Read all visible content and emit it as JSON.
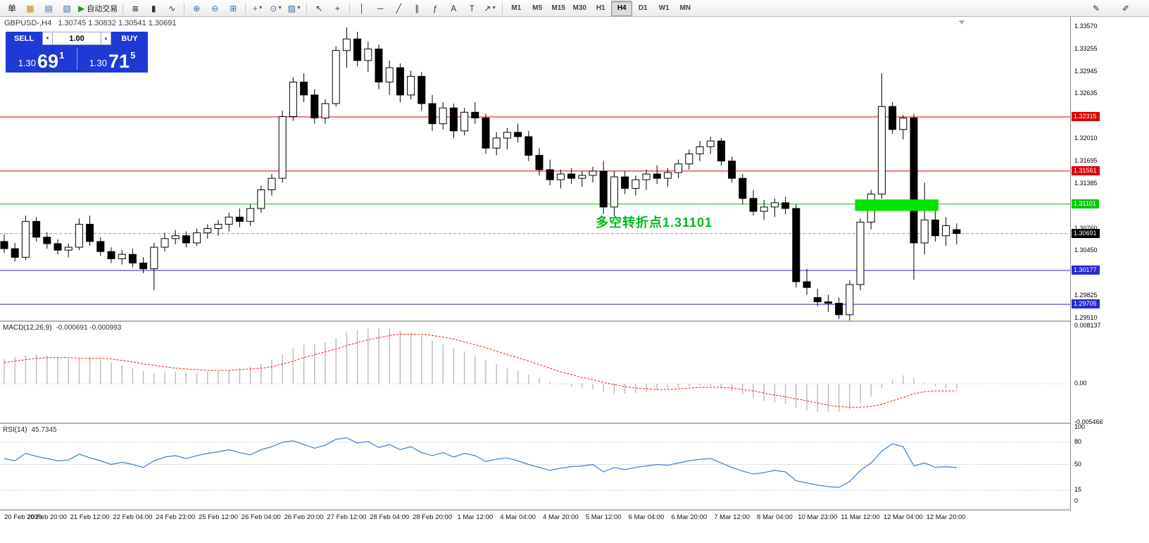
{
  "header": {
    "symbol_period": "GBPUSD-,H4",
    "ohlc": "1.30745 1.30832 1.30541 1.30691"
  },
  "one_click": {
    "sell_label": "SELL",
    "buy_label": "BUY",
    "volume": "1.00",
    "dec_glyph": "▼",
    "inc_glyph": "▲",
    "bid": {
      "prefix": "1.30",
      "big": "69",
      "sup": "1"
    },
    "ask": {
      "prefix": "1.30",
      "big": "71",
      "sup": "5"
    },
    "panel_color": "#1f39d4"
  },
  "toolbar": {
    "groups": [
      [
        {
          "name": "new-order-button",
          "glyph": "单",
          "color": "#222222"
        },
        {
          "name": "profiles-icon",
          "glyph": "▦",
          "color": "#c8860a"
        },
        {
          "name": "market-watch-icon",
          "glyph": "▤",
          "color": "#3a6ea5"
        },
        {
          "name": "navigator-icon",
          "glyph": "▧",
          "color": "#3a6ea5"
        },
        {
          "name": "auto-trading-button",
          "glyph": "▶",
          "color": "#18a018",
          "label": "自动交易"
        }
      ],
      [
        {
          "name": "bar-chart-icon",
          "glyph": "≣",
          "color": "#333333"
        },
        {
          "name": "candlestick-chart-icon",
          "glyph": "▮",
          "color": "#333333"
        },
        {
          "name": "line-chart-icon",
          "glyph": "∿",
          "color": "#333333"
        }
      ],
      [
        {
          "name": "zoom-in-icon",
          "glyph": "⊕",
          "color": "#3a6ea5"
        },
        {
          "name": "zoom-out-icon",
          "glyph": "⊖",
          "color": "#3a6ea5"
        },
        {
          "name": "tile-windows-icon",
          "glyph": "⊞",
          "color": "#3a6ea5"
        }
      ],
      [
        {
          "name": "indicators-button",
          "glyph": "+",
          "color": "#0a9a0a",
          "dropdown": true
        },
        {
          "name": "periods-button",
          "glyph": "⊙",
          "color": "#3a6ea5",
          "dropdown": true
        },
        {
          "name": "templates-button",
          "glyph": "▨",
          "color": "#3a6ea5",
          "dropdown": true
        }
      ],
      [
        {
          "name": "cursor-icon",
          "glyph": "↖",
          "color": "#333333"
        },
        {
          "name": "crosshair-icon",
          "glyph": "+",
          "color": "#333333"
        }
      ],
      [
        {
          "name": "vertical-line-icon",
          "glyph": "│",
          "color": "#333333"
        },
        {
          "name": "horizontal-line-icon",
          "glyph": "─",
          "color": "#333333"
        },
        {
          "name": "trendline-icon",
          "glyph": "╱",
          "color": "#333333"
        },
        {
          "name": "channel-icon",
          "glyph": "∥",
          "color": "#333333"
        },
        {
          "name": "fibonacci-icon",
          "glyph": "ƒ",
          "color": "#333333"
        },
        {
          "name": "text-icon",
          "glyph": "A",
          "color": "#333333"
        },
        {
          "name": "label-icon",
          "glyph": "T",
          "color": "#333333"
        },
        {
          "name": "arrows-icon",
          "glyph": "↗",
          "color": "#333333",
          "dropdown": true
        }
      ]
    ],
    "timeframes": [
      "M1",
      "M5",
      "M15",
      "M30",
      "H1",
      "H4",
      "D1",
      "W1",
      "MN"
    ],
    "active_timeframe": "H4",
    "right_icons": [
      {
        "name": "edit-icon",
        "glyph": "✎"
      },
      {
        "name": "note-icon",
        "glyph": "✐"
      }
    ]
  },
  "chart_data": {
    "type": "candlestick",
    "symbol": "GBPUSD-",
    "period": "H4",
    "title": "GBPUSD-,H4 1.30745 1.30832 1.30541 1.30691",
    "ylim": [
      1.2951,
      1.3357
    ],
    "label_every": 4,
    "time_labels": [
      "20 Feb 2019",
      "20 Feb 20:00",
      "21 Feb 12:00",
      "22 Feb 04:00",
      "24 Feb 23:00",
      "25 Feb 12:00",
      "26 Feb 04:00",
      "26 Feb 20:00",
      "27 Feb 12:00",
      "28 Feb 04:00",
      "28 Feb 20:00",
      "1 Mar 12:00",
      "4 Mar 04:00",
      "4 Mar 20:00",
      "5 Mar 12:00",
      "6 Mar 04:00",
      "6 Mar 20:00",
      "7 Mar 12:00",
      "8 Mar 04:00",
      "10 Mar 23:00",
      "11 Mar 12:00",
      "12 Mar 04:00",
      "12 Mar 20:00"
    ],
    "price_ticks": [
      {
        "label": "1.33570",
        "value": 1.3357
      },
      {
        "label": "1.33255",
        "value": 1.33255
      },
      {
        "label": "1.32945",
        "value": 1.32945
      },
      {
        "label": "1.32635",
        "value": 1.32635
      },
      {
        "label": "1.32010",
        "value": 1.3201
      },
      {
        "label": "1.31695",
        "value": 1.31695
      },
      {
        "label": "1.31385",
        "value": 1.31385
      },
      {
        "label": "1.30760",
        "value": 1.3076
      },
      {
        "label": "1.30450",
        "value": 1.3045
      },
      {
        "label": "1.29825",
        "value": 1.29825
      },
      {
        "label": "1.29510",
        "value": 1.2951
      }
    ],
    "levels": [
      {
        "label": "1.32315",
        "price": 1.32315,
        "color": "#dd0000"
      },
      {
        "label": "1.31561",
        "price": 1.31561,
        "color": "#dd0000"
      },
      {
        "label": "1.31101",
        "price": 1.31101,
        "color": "#00cc00"
      },
      {
        "label": "1.30177",
        "price": 1.30177,
        "color": "#2929d6"
      },
      {
        "label": "1.29705",
        "price": 1.29705,
        "color": "#2929d6"
      }
    ],
    "current_price": {
      "label": "1.30691",
      "price": 1.30691,
      "color": "#000000"
    },
    "green_box": {
      "from_index": 79.5,
      "to_index": 87.3,
      "price_top": 1.31165,
      "price_bottom": 1.31005,
      "color": "#00e400"
    },
    "annotation": {
      "text": "多空转折点1.31101",
      "color": "#00b81e"
    },
    "candles": [
      [
        1.3058,
        1.3068,
        1.3042,
        1.3048
      ],
      [
        1.3048,
        1.3056,
        1.303,
        1.3036
      ],
      [
        1.3036,
        1.3094,
        1.3032,
        1.3086
      ],
      [
        1.3086,
        1.3092,
        1.3058,
        1.3064
      ],
      [
        1.3064,
        1.3071,
        1.3048,
        1.3055
      ],
      [
        1.3055,
        1.3061,
        1.304,
        1.3046
      ],
      [
        1.3046,
        1.3055,
        1.3036,
        1.305
      ],
      [
        1.305,
        1.309,
        1.3046,
        1.3082
      ],
      [
        1.3082,
        1.3094,
        1.3052,
        1.3058
      ],
      [
        1.3058,
        1.3064,
        1.3038,
        1.3044
      ],
      [
        1.3044,
        1.305,
        1.3028,
        1.3034
      ],
      [
        1.3034,
        1.3046,
        1.3026,
        1.304
      ],
      [
        1.304,
        1.3048,
        1.3022,
        1.3028
      ],
      [
        1.3028,
        1.3036,
        1.3014,
        1.302
      ],
      [
        1.302,
        1.3056,
        1.299,
        1.305
      ],
      [
        1.305,
        1.307,
        1.3044,
        1.3062
      ],
      [
        1.3062,
        1.3074,
        1.3054,
        1.3066
      ],
      [
        1.3066,
        1.3072,
        1.305,
        1.3056
      ],
      [
        1.3056,
        1.3076,
        1.3052,
        1.307
      ],
      [
        1.307,
        1.3082,
        1.3062,
        1.3076
      ],
      [
        1.3076,
        1.3088,
        1.3066,
        1.3082
      ],
      [
        1.3082,
        1.3098,
        1.3072,
        1.3092
      ],
      [
        1.3092,
        1.3104,
        1.3078,
        1.3086
      ],
      [
        1.3086,
        1.311,
        1.308,
        1.3104
      ],
      [
        1.3104,
        1.3136,
        1.3098,
        1.313
      ],
      [
        1.313,
        1.3152,
        1.3122,
        1.3146
      ],
      [
        1.3146,
        1.324,
        1.314,
        1.3232
      ],
      [
        1.3232,
        1.3286,
        1.3226,
        1.328
      ],
      [
        1.328,
        1.3292,
        1.3252,
        1.3262
      ],
      [
        1.3262,
        1.327,
        1.3222,
        1.323
      ],
      [
        1.323,
        1.3256,
        1.3222,
        1.325
      ],
      [
        1.325,
        1.333,
        1.3246,
        1.3324
      ],
      [
        1.3324,
        1.3356,
        1.33,
        1.334
      ],
      [
        1.334,
        1.335,
        1.3302,
        1.331
      ],
      [
        1.331,
        1.3336,
        1.3294,
        1.3326
      ],
      [
        1.3326,
        1.3332,
        1.327,
        1.328
      ],
      [
        1.328,
        1.331,
        1.3262,
        1.33
      ],
      [
        1.33,
        1.3306,
        1.3252,
        1.3262
      ],
      [
        1.3262,
        1.3296,
        1.3256,
        1.3288
      ],
      [
        1.3288,
        1.3294,
        1.324,
        1.325
      ],
      [
        1.325,
        1.3262,
        1.3212,
        1.3222
      ],
      [
        1.3222,
        1.3252,
        1.3214,
        1.3244
      ],
      [
        1.3244,
        1.325,
        1.3202,
        1.3212
      ],
      [
        1.3212,
        1.3244,
        1.3206,
        1.3238
      ],
      [
        1.3238,
        1.3252,
        1.3222,
        1.323
      ],
      [
        1.323,
        1.3236,
        1.318,
        1.3188
      ],
      [
        1.3188,
        1.321,
        1.3178,
        1.3202
      ],
      [
        1.3202,
        1.3216,
        1.3186,
        1.321
      ],
      [
        1.321,
        1.3222,
        1.3196,
        1.3204
      ],
      [
        1.3204,
        1.3212,
        1.317,
        1.3178
      ],
      [
        1.3178,
        1.3188,
        1.315,
        1.3158
      ],
      [
        1.3158,
        1.3172,
        1.3136,
        1.3144
      ],
      [
        1.3144,
        1.3158,
        1.3132,
        1.3152
      ],
      [
        1.3152,
        1.316,
        1.3138,
        1.3146
      ],
      [
        1.3146,
        1.3156,
        1.3134,
        1.315
      ],
      [
        1.315,
        1.3162,
        1.314,
        1.3156
      ],
      [
        1.3156,
        1.317,
        1.3096,
        1.3106
      ],
      [
        1.3106,
        1.3156,
        1.3094,
        1.3148
      ],
      [
        1.3148,
        1.3156,
        1.3124,
        1.3132
      ],
      [
        1.3132,
        1.315,
        1.3122,
        1.3144
      ],
      [
        1.3144,
        1.3158,
        1.313,
        1.3152
      ],
      [
        1.3152,
        1.3164,
        1.3138,
        1.3146
      ],
      [
        1.3146,
        1.316,
        1.3134,
        1.3154
      ],
      [
        1.3154,
        1.3172,
        1.3146,
        1.3166
      ],
      [
        1.3166,
        1.3186,
        1.3158,
        1.318
      ],
      [
        1.318,
        1.3198,
        1.317,
        1.319
      ],
      [
        1.319,
        1.3204,
        1.318,
        1.3198
      ],
      [
        1.3198,
        1.3202,
        1.3164,
        1.317
      ],
      [
        1.317,
        1.3176,
        1.314,
        1.3146
      ],
      [
        1.3146,
        1.3152,
        1.311,
        1.3118
      ],
      [
        1.3118,
        1.313,
        1.3094,
        1.31
      ],
      [
        1.31,
        1.3116,
        1.3088,
        1.3106
      ],
      [
        1.3106,
        1.3118,
        1.3092,
        1.3112
      ],
      [
        1.3112,
        1.312,
        1.3096,
        1.3104
      ],
      [
        1.3104,
        1.311,
        1.2994,
        1.3002
      ],
      [
        1.3002,
        1.302,
        1.2984,
        1.2994
      ],
      [
        1.298,
        1.2992,
        1.2968,
        1.2974
      ],
      [
        1.2974,
        1.2984,
        1.296,
        1.2972
      ],
      [
        1.2972,
        1.298,
        1.295,
        1.2956
      ],
      [
        1.2956,
        1.3004,
        1.2948,
        1.2998
      ],
      [
        1.2998,
        1.309,
        1.299,
        1.3085
      ],
      [
        1.3085,
        1.313,
        1.3075,
        1.3124
      ],
      [
        1.3124,
        1.3292,
        1.3118,
        1.3246
      ],
      [
        1.3246,
        1.3252,
        1.3208,
        1.3214
      ],
      [
        1.3214,
        1.3234,
        1.32,
        1.323
      ],
      [
        1.323,
        1.3236,
        1.3005,
        1.3056
      ],
      [
        1.3056,
        1.314,
        1.304,
        1.3088
      ],
      [
        1.3088,
        1.3102,
        1.3058,
        1.3066
      ],
      [
        1.3066,
        1.3092,
        1.3052,
        1.308
      ],
      [
        1.30745,
        1.30832,
        1.30541,
        1.30691
      ]
    ],
    "macd": {
      "label": "MACD(12,26,9)",
      "values_text": "-0.000691 -0.000993",
      "scale": [
        {
          "label": "0.008137",
          "value": 0.008137
        },
        {
          "label": "0.00",
          "value": 0
        },
        {
          "label": "-0.005466",
          "value": -0.005466
        }
      ],
      "histogram": [
        0.0035,
        0.0038,
        0.004,
        0.0042,
        0.004,
        0.0037,
        0.0035,
        0.0036,
        0.0038,
        0.0035,
        0.003,
        0.0026,
        0.0022,
        0.0018,
        0.0015,
        0.0016,
        0.0017,
        0.0016,
        0.0016,
        0.0017,
        0.0018,
        0.002,
        0.0022,
        0.0024,
        0.0028,
        0.0034,
        0.0042,
        0.005,
        0.0055,
        0.0056,
        0.0058,
        0.0064,
        0.0072,
        0.0076,
        0.0078,
        0.0079,
        0.0078,
        0.0075,
        0.0072,
        0.0068,
        0.0062,
        0.0056,
        0.005,
        0.0045,
        0.004,
        0.0034,
        0.0028,
        0.0023,
        0.0018,
        0.0013,
        0.0008,
        0.0003,
        -0.0001,
        -0.0004,
        -0.0006,
        -0.0008,
        -0.0012,
        -0.0014,
        -0.0014,
        -0.0013,
        -0.0011,
        -0.0009,
        -0.0007,
        -0.0005,
        -0.0003,
        -0.0002,
        -0.0003,
        -0.0006,
        -0.001,
        -0.0015,
        -0.002,
        -0.0024,
        -0.0026,
        -0.0028,
        -0.0034,
        -0.0038,
        -0.004,
        -0.004,
        -0.0039,
        -0.0036,
        -0.0028,
        -0.0018,
        -0.0006,
        0.0006,
        0.0012,
        0.0008,
        0.0002,
        -0.0003,
        -0.0006,
        -0.000691
      ],
      "signal": [
        0.003,
        0.0032,
        0.0034,
        0.0036,
        0.0037,
        0.0037,
        0.0037,
        0.0036,
        0.0036,
        0.0036,
        0.0035,
        0.0033,
        0.0031,
        0.0028,
        0.0026,
        0.0024,
        0.0022,
        0.0021,
        0.002,
        0.0019,
        0.0019,
        0.0019,
        0.002,
        0.0021,
        0.0022,
        0.0024,
        0.0028,
        0.0032,
        0.0037,
        0.0041,
        0.0045,
        0.0049,
        0.0054,
        0.0058,
        0.0062,
        0.0065,
        0.0068,
        0.007,
        0.007,
        0.007,
        0.0068,
        0.0066,
        0.0063,
        0.0059,
        0.0055,
        0.0051,
        0.0046,
        0.0041,
        0.0037,
        0.0032,
        0.0027,
        0.0022,
        0.0017,
        0.0013,
        0.0009,
        0.0006,
        0.0002,
        -0.0001,
        -0.0004,
        -0.0006,
        -0.0007,
        -0.0008,
        -0.0008,
        -0.0007,
        -0.0006,
        -0.0005,
        -0.0005,
        -0.0005,
        -0.0006,
        -0.0008,
        -0.001,
        -0.0013,
        -0.0016,
        -0.0018,
        -0.0021,
        -0.0024,
        -0.0027,
        -0.003,
        -0.0032,
        -0.0033,
        -0.0033,
        -0.0032,
        -0.0029,
        -0.0024,
        -0.0019,
        -0.0014,
        -0.0011,
        -0.001,
        -0.001,
        -0.000993
      ]
    },
    "rsi": {
      "label": "RSI(14)",
      "value_text": "45.7345",
      "color": "#3d7dca",
      "levels": [
        80,
        50,
        15
      ],
      "scale": [
        {
          "label": "100",
          "value": 100
        },
        {
          "label": "80",
          "value": 80
        },
        {
          "label": "50",
          "value": 50
        },
        {
          "label": "15",
          "value": 15
        },
        {
          "label": "0",
          "value": 0
        }
      ],
      "values": [
        58,
        55,
        65,
        61,
        58,
        55,
        56,
        64,
        59,
        55,
        50,
        53,
        50,
        46,
        55,
        60,
        62,
        58,
        62,
        65,
        67,
        70,
        66,
        63,
        70,
        74,
        80,
        82,
        77,
        72,
        76,
        84,
        86,
        79,
        81,
        73,
        77,
        70,
        74,
        66,
        62,
        66,
        60,
        65,
        62,
        54,
        57,
        59,
        55,
        50,
        46,
        42,
        45,
        47,
        48,
        50,
        40,
        46,
        43,
        46,
        48,
        50,
        49,
        52,
        55,
        57,
        58,
        52,
        46,
        41,
        37,
        39,
        42,
        40,
        28,
        25,
        22,
        20,
        19,
        27,
        42,
        52,
        68,
        78,
        74,
        48,
        52,
        46,
        47,
        45.73
      ]
    }
  }
}
